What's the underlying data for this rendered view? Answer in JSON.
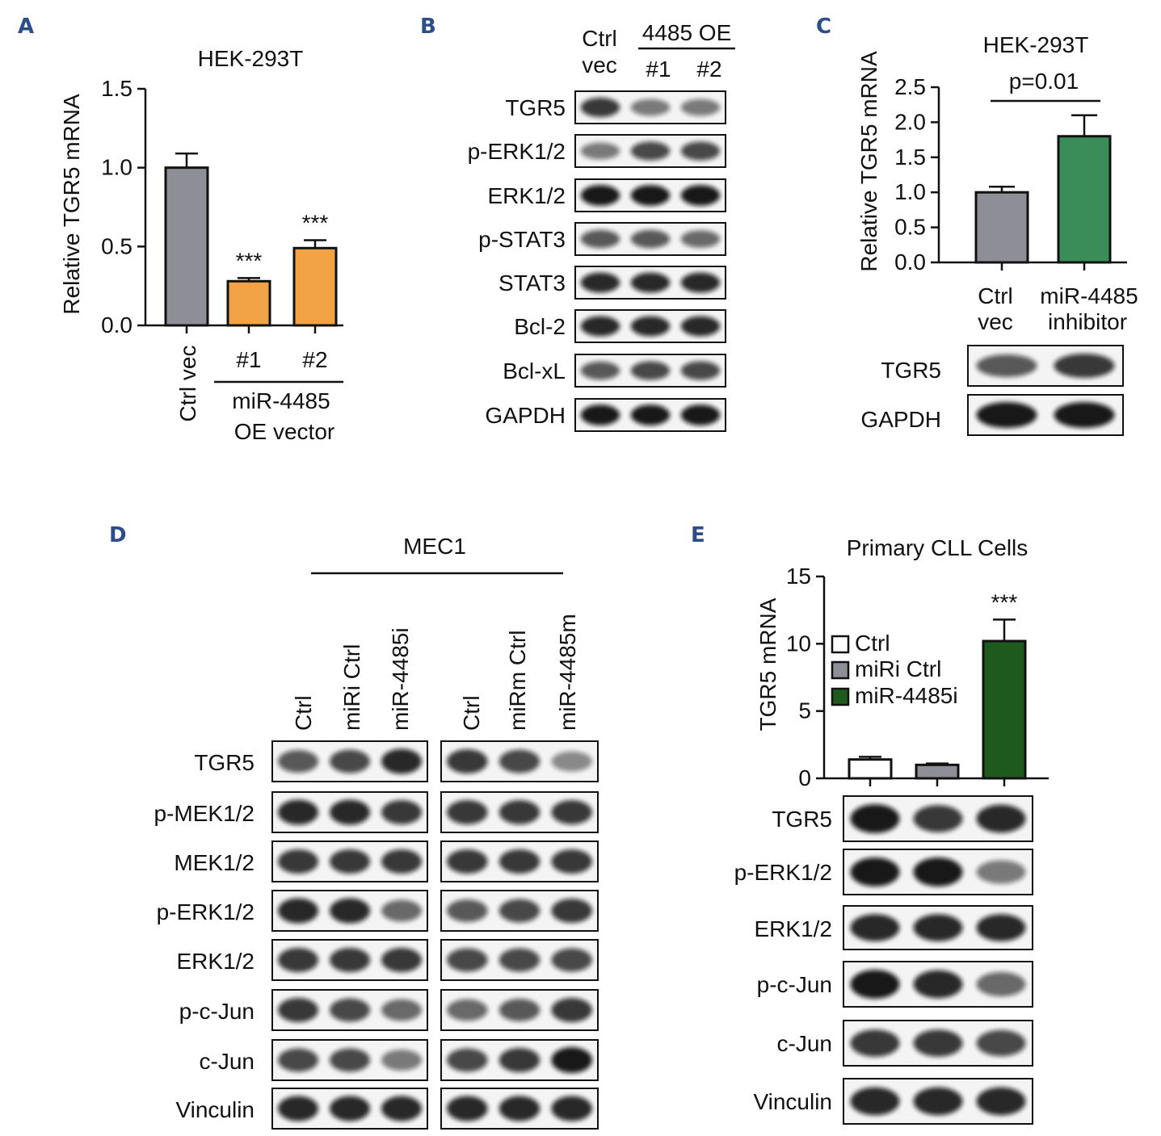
{
  "panels": {
    "A": {
      "letter": "A"
    },
    "B": {
      "letter": "B"
    },
    "C": {
      "letter": "C"
    },
    "D": {
      "letter": "D"
    },
    "E": {
      "letter": "E"
    }
  },
  "panel_a": {
    "title": "HEK-293T",
    "ylabel": "Relative TGR5 mRNA",
    "yticks": [
      "1.5",
      "1.0",
      "0.5",
      "0.0"
    ],
    "xlabels": [
      "Ctrl vec",
      "#1",
      "#2"
    ],
    "group_label_1": "miR-4485",
    "group_label_2": "OE vector",
    "sig": [
      "***",
      "***"
    ]
  },
  "panel_b": {
    "header_ctrl_1": "Ctrl",
    "header_ctrl_2": "vec",
    "header_group": "4485 OE",
    "header_lane_1": "#1",
    "header_lane_2": "#2",
    "rows": [
      "TGR5",
      "p-ERK1/2",
      "ERK1/2",
      "p-STAT3",
      "STAT3",
      "Bcl-2",
      "Bcl-xL",
      "GAPDH"
    ]
  },
  "panel_c": {
    "title": "HEK-293T",
    "ylabel": "Relative TGR5 mRNA",
    "yticks": [
      "2.5",
      "2.0",
      "1.5",
      "1.0",
      "0.5",
      "0.0"
    ],
    "pvalue": "p=0.01",
    "xlabel_1a": "Ctrl",
    "xlabel_1b": "vec",
    "xlabel_2a": "miR-4485",
    "xlabel_2b": "inhibitor",
    "blot_rows": [
      "TGR5",
      "GAPDH"
    ]
  },
  "panel_d": {
    "title": "MEC1",
    "lanes": [
      "Ctrl",
      "miRi Ctrl",
      "miR-4485i",
      "Ctrl",
      "miRm Ctrl",
      "miR-4485m"
    ],
    "rows": [
      "TGR5",
      "p-MEK1/2",
      "MEK1/2",
      "p-ERK1/2",
      "ERK1/2",
      "p-c-Jun",
      "c-Jun",
      "Vinculin"
    ]
  },
  "panel_e": {
    "title": "Primary CLL Cells",
    "ylabel": "TGR5 mRNA",
    "yticks": [
      "15",
      "10",
      "5",
      "0"
    ],
    "legend": [
      "Ctrl",
      "miRi Ctrl",
      "miR-4485i"
    ],
    "sig": "***",
    "rows": [
      "TGR5",
      "p-ERK1/2",
      "ERK1/2",
      "p-c-Jun",
      "c-Jun",
      "Vinculin"
    ]
  },
  "colors": {
    "ctrl_gray": "#8e8e96",
    "oe_orange": "#f1a345",
    "inhibitor_green": "#3a8c58",
    "dark_green": "#1e5a1e",
    "panel_letter": "#2c4d87"
  },
  "chart_data": [
    {
      "type": "bar",
      "title": "HEK-293T",
      "ylabel": "Relative TGR5 mRNA",
      "categories": [
        "Ctrl vec",
        "#1",
        "#2"
      ],
      "values": [
        1.0,
        0.28,
        0.49
      ],
      "errors": [
        0.09,
        0.02,
        0.05
      ],
      "ylim": [
        0,
        1.5
      ],
      "colors": [
        "#8e8e96",
        "#f1a345",
        "#f1a345"
      ],
      "annotations": [
        "",
        "***",
        "***"
      ]
    },
    {
      "type": "bar",
      "title": "HEK-293T",
      "ylabel": "Relative TGR5 mRNA",
      "categories": [
        "Ctrl vec",
        "miR-4485 inhibitor"
      ],
      "values": [
        1.0,
        1.8
      ],
      "errors": [
        0.08,
        0.3
      ],
      "ylim": [
        0,
        2.5
      ],
      "colors": [
        "#8e8e96",
        "#3a8c58"
      ],
      "annotations": [
        "p=0.01"
      ]
    },
    {
      "type": "bar",
      "title": "Primary CLL Cells",
      "ylabel": "TGR5 mRNA",
      "categories": [
        "Ctrl",
        "miRi Ctrl",
        "miR-4485i"
      ],
      "values": [
        1.4,
        1.0,
        10.2
      ],
      "errors": [
        0.2,
        0.1,
        1.6
      ],
      "ylim": [
        0,
        15
      ],
      "colors": [
        "#ffffff",
        "#8e8e96",
        "#1e5a1e"
      ],
      "annotations": [
        "",
        "",
        "***"
      ]
    }
  ]
}
